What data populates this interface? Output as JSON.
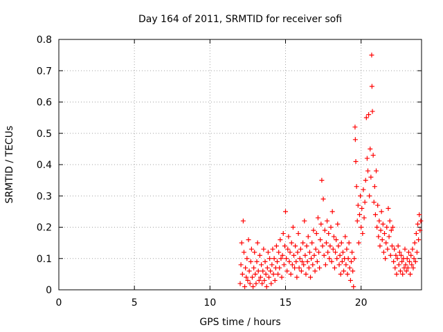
{
  "chart_data": {
    "type": "scatter",
    "title": "Day 164 of 2011, SRMTID for receiver sofi",
    "xlabel": "GPS time / hours",
    "ylabel": "SRMTID / TECUs",
    "xlim": [
      0,
      24
    ],
    "ylim": [
      0,
      0.8
    ],
    "x_ticks": [
      0,
      5,
      10,
      15,
      20
    ],
    "x_tick_labels": [
      "0",
      "5",
      "10",
      "15",
      "20"
    ],
    "y_ticks": [
      0,
      0.1,
      0.2,
      0.3,
      0.4,
      0.5,
      0.6,
      0.7,
      0.8
    ],
    "y_tick_labels": [
      "0",
      "0.1",
      "0.2",
      "0.3",
      "0.4",
      "0.5",
      "0.6",
      "0.7",
      "0.8"
    ],
    "grid": true,
    "marker": "+",
    "colors": {
      "points": "#ff0000",
      "grid": "#a0a0a0",
      "axis": "#000000"
    },
    "points": [
      [
        12.0,
        0.02
      ],
      [
        12.05,
        0.08
      ],
      [
        12.1,
        0.15
      ],
      [
        12.15,
        0.05
      ],
      [
        12.2,
        0.22
      ],
      [
        12.25,
        0.12
      ],
      [
        12.3,
        0.01
      ],
      [
        12.35,
        0.07
      ],
      [
        12.4,
        0.04
      ],
      [
        12.45,
        0.1
      ],
      [
        12.5,
        0.03
      ],
      [
        12.55,
        0.16
      ],
      [
        12.6,
        0.06
      ],
      [
        12.65,
        0.02
      ],
      [
        12.7,
        0.09
      ],
      [
        12.75,
        0.13
      ],
      [
        12.8,
        0.04
      ],
      [
        12.85,
        0.01
      ],
      [
        12.9,
        0.07
      ],
      [
        12.95,
        0.12
      ],
      [
        13.0,
        0.05
      ],
      [
        13.05,
        0.02
      ],
      [
        13.1,
        0.09
      ],
      [
        13.15,
        0.15
      ],
      [
        13.2,
        0.06
      ],
      [
        13.25,
        0.03
      ],
      [
        13.3,
        0.11
      ],
      [
        13.35,
        0.04
      ],
      [
        13.4,
        0.08
      ],
      [
        13.45,
        0.02
      ],
      [
        13.5,
        0.06
      ],
      [
        13.55,
        0.13
      ],
      [
        13.6,
        0.03
      ],
      [
        13.65,
        0.09
      ],
      [
        13.7,
        0.05
      ],
      [
        13.75,
        0.01
      ],
      [
        13.8,
        0.07
      ],
      [
        13.85,
        0.12
      ],
      [
        13.9,
        0.04
      ],
      [
        13.95,
        0.1
      ],
      [
        14.0,
        0.06
      ],
      [
        14.05,
        0.02
      ],
      [
        14.1,
        0.08
      ],
      [
        14.15,
        0.13
      ],
      [
        14.2,
        0.05
      ],
      [
        14.25,
        0.1
      ],
      [
        14.3,
        0.03
      ],
      [
        14.35,
        0.07
      ],
      [
        14.4,
        0.14
      ],
      [
        14.45,
        0.09
      ],
      [
        14.5,
        0.05
      ],
      [
        14.55,
        0.12
      ],
      [
        14.6,
        0.07
      ],
      [
        14.65,
        0.16
      ],
      [
        14.7,
        0.1
      ],
      [
        14.75,
        0.04
      ],
      [
        14.8,
        0.11
      ],
      [
        14.85,
        0.18
      ],
      [
        14.9,
        0.08
      ],
      [
        14.95,
        0.14
      ],
      [
        15.0,
        0.25
      ],
      [
        15.05,
        0.1
      ],
      [
        15.1,
        0.06
      ],
      [
        15.15,
        0.13
      ],
      [
        15.2,
        0.17
      ],
      [
        15.25,
        0.09
      ],
      [
        15.3,
        0.12
      ],
      [
        15.35,
        0.05
      ],
      [
        15.4,
        0.15
      ],
      [
        15.45,
        0.08
      ],
      [
        15.5,
        0.2
      ],
      [
        15.55,
        0.11
      ],
      [
        15.6,
        0.07
      ],
      [
        15.65,
        0.14
      ],
      [
        15.7,
        0.09
      ],
      [
        15.75,
        0.04
      ],
      [
        15.8,
        0.12
      ],
      [
        15.85,
        0.18
      ],
      [
        15.9,
        0.07
      ],
      [
        15.95,
        0.1
      ],
      [
        16.0,
        0.13
      ],
      [
        16.05,
        0.06
      ],
      [
        16.1,
        0.09
      ],
      [
        16.15,
        0.15
      ],
      [
        16.2,
        0.08
      ],
      [
        16.25,
        0.22
      ],
      [
        16.3,
        0.11
      ],
      [
        16.35,
        0.05
      ],
      [
        16.4,
        0.14
      ],
      [
        16.45,
        0.09
      ],
      [
        16.5,
        0.17
      ],
      [
        16.55,
        0.07
      ],
      [
        16.6,
        0.12
      ],
      [
        16.65,
        0.04
      ],
      [
        16.7,
        0.1
      ],
      [
        16.75,
        0.15
      ],
      [
        16.8,
        0.08
      ],
      [
        16.85,
        0.19
      ],
      [
        16.9,
        0.11
      ],
      [
        16.95,
        0.06
      ],
      [
        17.0,
        0.13
      ],
      [
        17.05,
        0.18
      ],
      [
        17.1,
        0.09
      ],
      [
        17.15,
        0.23
      ],
      [
        17.2,
        0.12
      ],
      [
        17.25,
        0.07
      ],
      [
        17.3,
        0.16
      ],
      [
        17.35,
        0.21
      ],
      [
        17.4,
        0.35
      ],
      [
        17.45,
        0.14
      ],
      [
        17.5,
        0.29
      ],
      [
        17.55,
        0.11
      ],
      [
        17.6,
        0.19
      ],
      [
        17.65,
        0.08
      ],
      [
        17.7,
        0.15
      ],
      [
        17.75,
        0.22
      ],
      [
        17.8,
        0.12
      ],
      [
        17.85,
        0.18
      ],
      [
        17.9,
        0.1
      ],
      [
        17.95,
        0.14
      ],
      [
        18.0,
        0.2
      ],
      [
        18.05,
        0.09
      ],
      [
        18.1,
        0.25
      ],
      [
        18.15,
        0.13
      ],
      [
        18.2,
        0.17
      ],
      [
        18.25,
        0.07
      ],
      [
        18.3,
        0.12
      ],
      [
        18.35,
        0.16
      ],
      [
        18.4,
        0.1
      ],
      [
        18.45,
        0.21
      ],
      [
        18.5,
        0.14
      ],
      [
        18.55,
        0.08
      ],
      [
        18.6,
        0.11
      ],
      [
        18.65,
        0.05
      ],
      [
        18.7,
        0.15
      ],
      [
        18.75,
        0.09
      ],
      [
        18.8,
        0.12
      ],
      [
        18.85,
        0.06
      ],
      [
        18.9,
        0.1
      ],
      [
        18.95,
        0.17
      ],
      [
        19.0,
        0.08
      ],
      [
        19.05,
        0.13
      ],
      [
        19.1,
        0.05
      ],
      [
        19.15,
        0.1
      ],
      [
        19.2,
        0.15
      ],
      [
        19.25,
        0.07
      ],
      [
        19.3,
        0.03
      ],
      [
        19.35,
        0.09
      ],
      [
        19.4,
        0.12
      ],
      [
        19.45,
        0.06
      ],
      [
        19.5,
        0.01
      ],
      [
        19.55,
        0.1
      ],
      [
        19.6,
        0.52
      ],
      [
        19.62,
        0.48
      ],
      [
        19.65,
        0.41
      ],
      [
        19.7,
        0.33
      ],
      [
        19.75,
        0.22
      ],
      [
        19.8,
        0.27
      ],
      [
        19.85,
        0.15
      ],
      [
        19.9,
        0.24
      ],
      [
        19.95,
        0.3
      ],
      [
        20.0,
        0.2
      ],
      [
        20.05,
        0.26
      ],
      [
        20.1,
        0.18
      ],
      [
        20.15,
        0.32
      ],
      [
        20.2,
        0.23
      ],
      [
        20.25,
        0.28
      ],
      [
        20.3,
        0.35
      ],
      [
        20.35,
        0.55
      ],
      [
        20.4,
        0.42
      ],
      [
        20.45,
        0.38
      ],
      [
        20.5,
        0.56
      ],
      [
        20.55,
        0.3
      ],
      [
        20.6,
        0.45
      ],
      [
        20.65,
        0.36
      ],
      [
        20.7,
        0.75
      ],
      [
        20.72,
        0.65
      ],
      [
        20.75,
        0.57
      ],
      [
        20.8,
        0.43
      ],
      [
        20.85,
        0.28
      ],
      [
        20.9,
        0.33
      ],
      [
        20.95,
        0.24
      ],
      [
        21.0,
        0.38
      ],
      [
        21.05,
        0.2
      ],
      [
        21.1,
        0.27
      ],
      [
        21.15,
        0.17
      ],
      [
        21.2,
        0.22
      ],
      [
        21.25,
        0.14
      ],
      [
        21.3,
        0.19
      ],
      [
        21.35,
        0.25
      ],
      [
        21.4,
        0.16
      ],
      [
        21.45,
        0.21
      ],
      [
        21.5,
        0.12
      ],
      [
        21.55,
        0.18
      ],
      [
        21.6,
        0.1
      ],
      [
        21.65,
        0.15
      ],
      [
        21.7,
        0.2
      ],
      [
        21.75,
        0.13
      ],
      [
        21.8,
        0.26
      ],
      [
        21.85,
        0.17
      ],
      [
        21.9,
        0.22
      ],
      [
        21.95,
        0.11
      ],
      [
        22.0,
        0.19
      ],
      [
        22.05,
        0.14
      ],
      [
        22.1,
        0.2
      ],
      [
        22.15,
        0.09
      ],
      [
        22.2,
        0.13
      ],
      [
        22.25,
        0.07
      ],
      [
        22.3,
        0.11
      ],
      [
        22.35,
        0.05
      ],
      [
        22.4,
        0.1
      ],
      [
        22.45,
        0.14
      ],
      [
        22.5,
        0.08
      ],
      [
        22.55,
        0.12
      ],
      [
        22.6,
        0.06
      ],
      [
        22.65,
        0.11
      ],
      [
        22.7,
        0.09
      ],
      [
        22.75,
        0.05
      ],
      [
        22.8,
        0.1
      ],
      [
        22.85,
        0.07
      ],
      [
        22.9,
        0.13
      ],
      [
        22.95,
        0.08
      ],
      [
        23.0,
        0.06
      ],
      [
        23.05,
        0.1
      ],
      [
        23.1,
        0.07
      ],
      [
        23.15,
        0.12
      ],
      [
        23.2,
        0.09
      ],
      [
        23.25,
        0.05
      ],
      [
        23.3,
        0.11
      ],
      [
        23.35,
        0.08
      ],
      [
        23.4,
        0.13
      ],
      [
        23.45,
        0.07
      ],
      [
        23.5,
        0.1
      ],
      [
        23.55,
        0.15
      ],
      [
        23.6,
        0.09
      ],
      [
        23.65,
        0.18
      ],
      [
        23.7,
        0.12
      ],
      [
        23.75,
        0.21
      ],
      [
        23.8,
        0.16
      ],
      [
        23.85,
        0.24
      ],
      [
        23.9,
        0.19
      ],
      [
        23.95,
        0.22
      ]
    ]
  }
}
